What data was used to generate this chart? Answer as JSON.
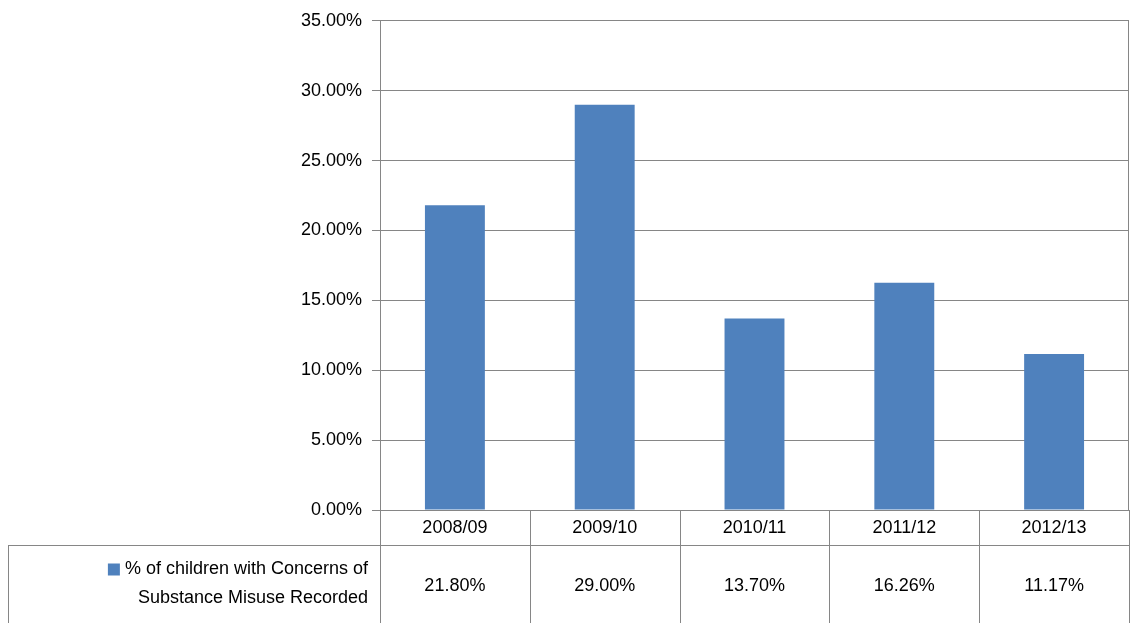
{
  "chart_data": {
    "type": "bar",
    "categories": [
      "2008/09",
      "2009/10",
      "2010/11",
      "2011/12",
      "2012/13"
    ],
    "series": [
      {
        "name": "% of children with Concerns of Substance Misuse Recorded",
        "color": "#4f81bd",
        "values": [
          21.8,
          29.0,
          13.7,
          16.26,
          11.17
        ],
        "value_labels": [
          "21.80%",
          "29.00%",
          "13.70%",
          "16.26%",
          "11.17%"
        ]
      }
    ],
    "ylim": [
      0,
      35
    ],
    "yticks": [
      {
        "value": 0,
        "label": "0.00%"
      },
      {
        "value": 5,
        "label": "5.00%"
      },
      {
        "value": 10,
        "label": "10.00%"
      },
      {
        "value": 15,
        "label": "15.00%"
      },
      {
        "value": 20,
        "label": "20.00%"
      },
      {
        "value": 25,
        "label": "25.00%"
      },
      {
        "value": 30,
        "label": "30.00%"
      },
      {
        "value": 35,
        "label": "35.00%"
      }
    ],
    "grid": "y",
    "legend": "bottom"
  }
}
